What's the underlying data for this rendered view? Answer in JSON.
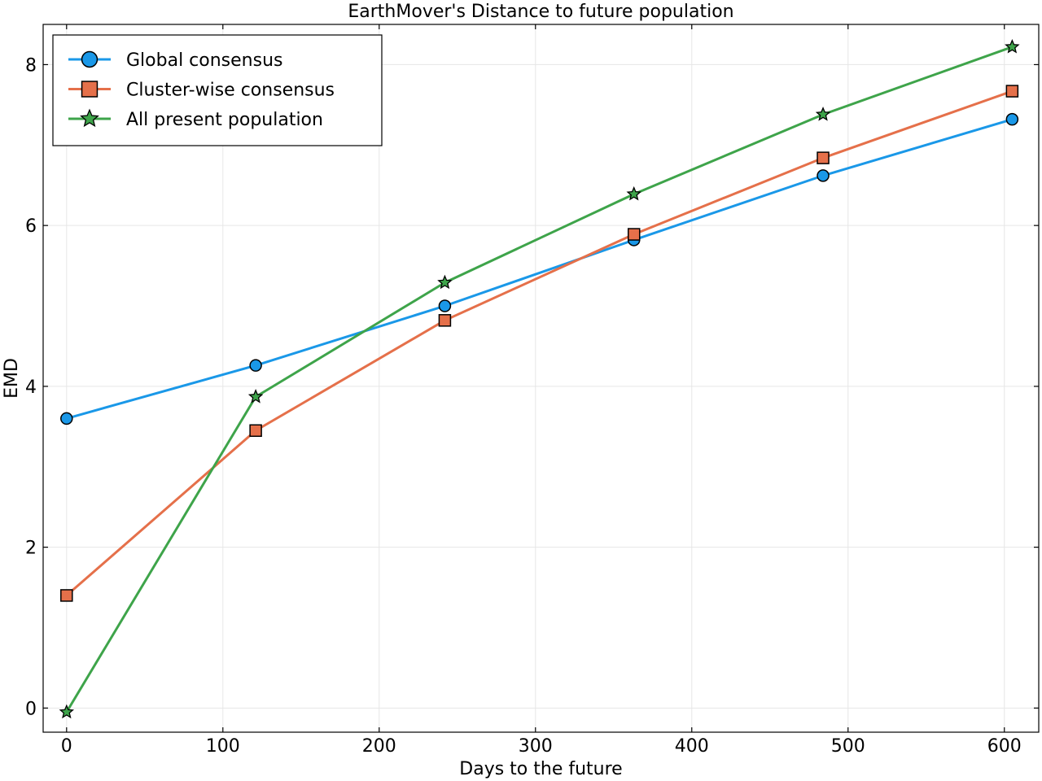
{
  "chart_data": {
    "type": "line",
    "title": "EarthMover's Distance to future population",
    "xlabel": "Days to the future",
    "ylabel": "EMD",
    "xlim": [
      -15,
      622
    ],
    "ylim": [
      -0.3,
      8.5
    ],
    "xticks": [
      0,
      100,
      200,
      300,
      400,
      500,
      600
    ],
    "xtick_labels": [
      "0",
      "100",
      "200",
      "300",
      "400",
      "500",
      "600"
    ],
    "yticks": [
      0,
      2,
      4,
      6,
      8
    ],
    "ytick_labels": [
      "0",
      "2",
      "4",
      "6",
      "8"
    ],
    "grid": true,
    "legend_position": "top-left",
    "x": [
      0,
      121,
      242,
      363,
      484,
      605
    ],
    "series": [
      {
        "name": "Global consensus",
        "marker": "circle",
        "color": "#1a98e8",
        "values": [
          3.6,
          4.26,
          5.0,
          5.82,
          6.62,
          7.32
        ]
      },
      {
        "name": "Cluster-wise consensus",
        "marker": "square",
        "color": "#e5704a",
        "values": [
          1.4,
          3.45,
          4.82,
          5.89,
          6.84,
          7.67
        ]
      },
      {
        "name": "All present population",
        "marker": "star",
        "color": "#3ea44a",
        "values": [
          -0.05,
          3.87,
          5.29,
          6.39,
          7.38,
          8.22
        ]
      }
    ]
  }
}
